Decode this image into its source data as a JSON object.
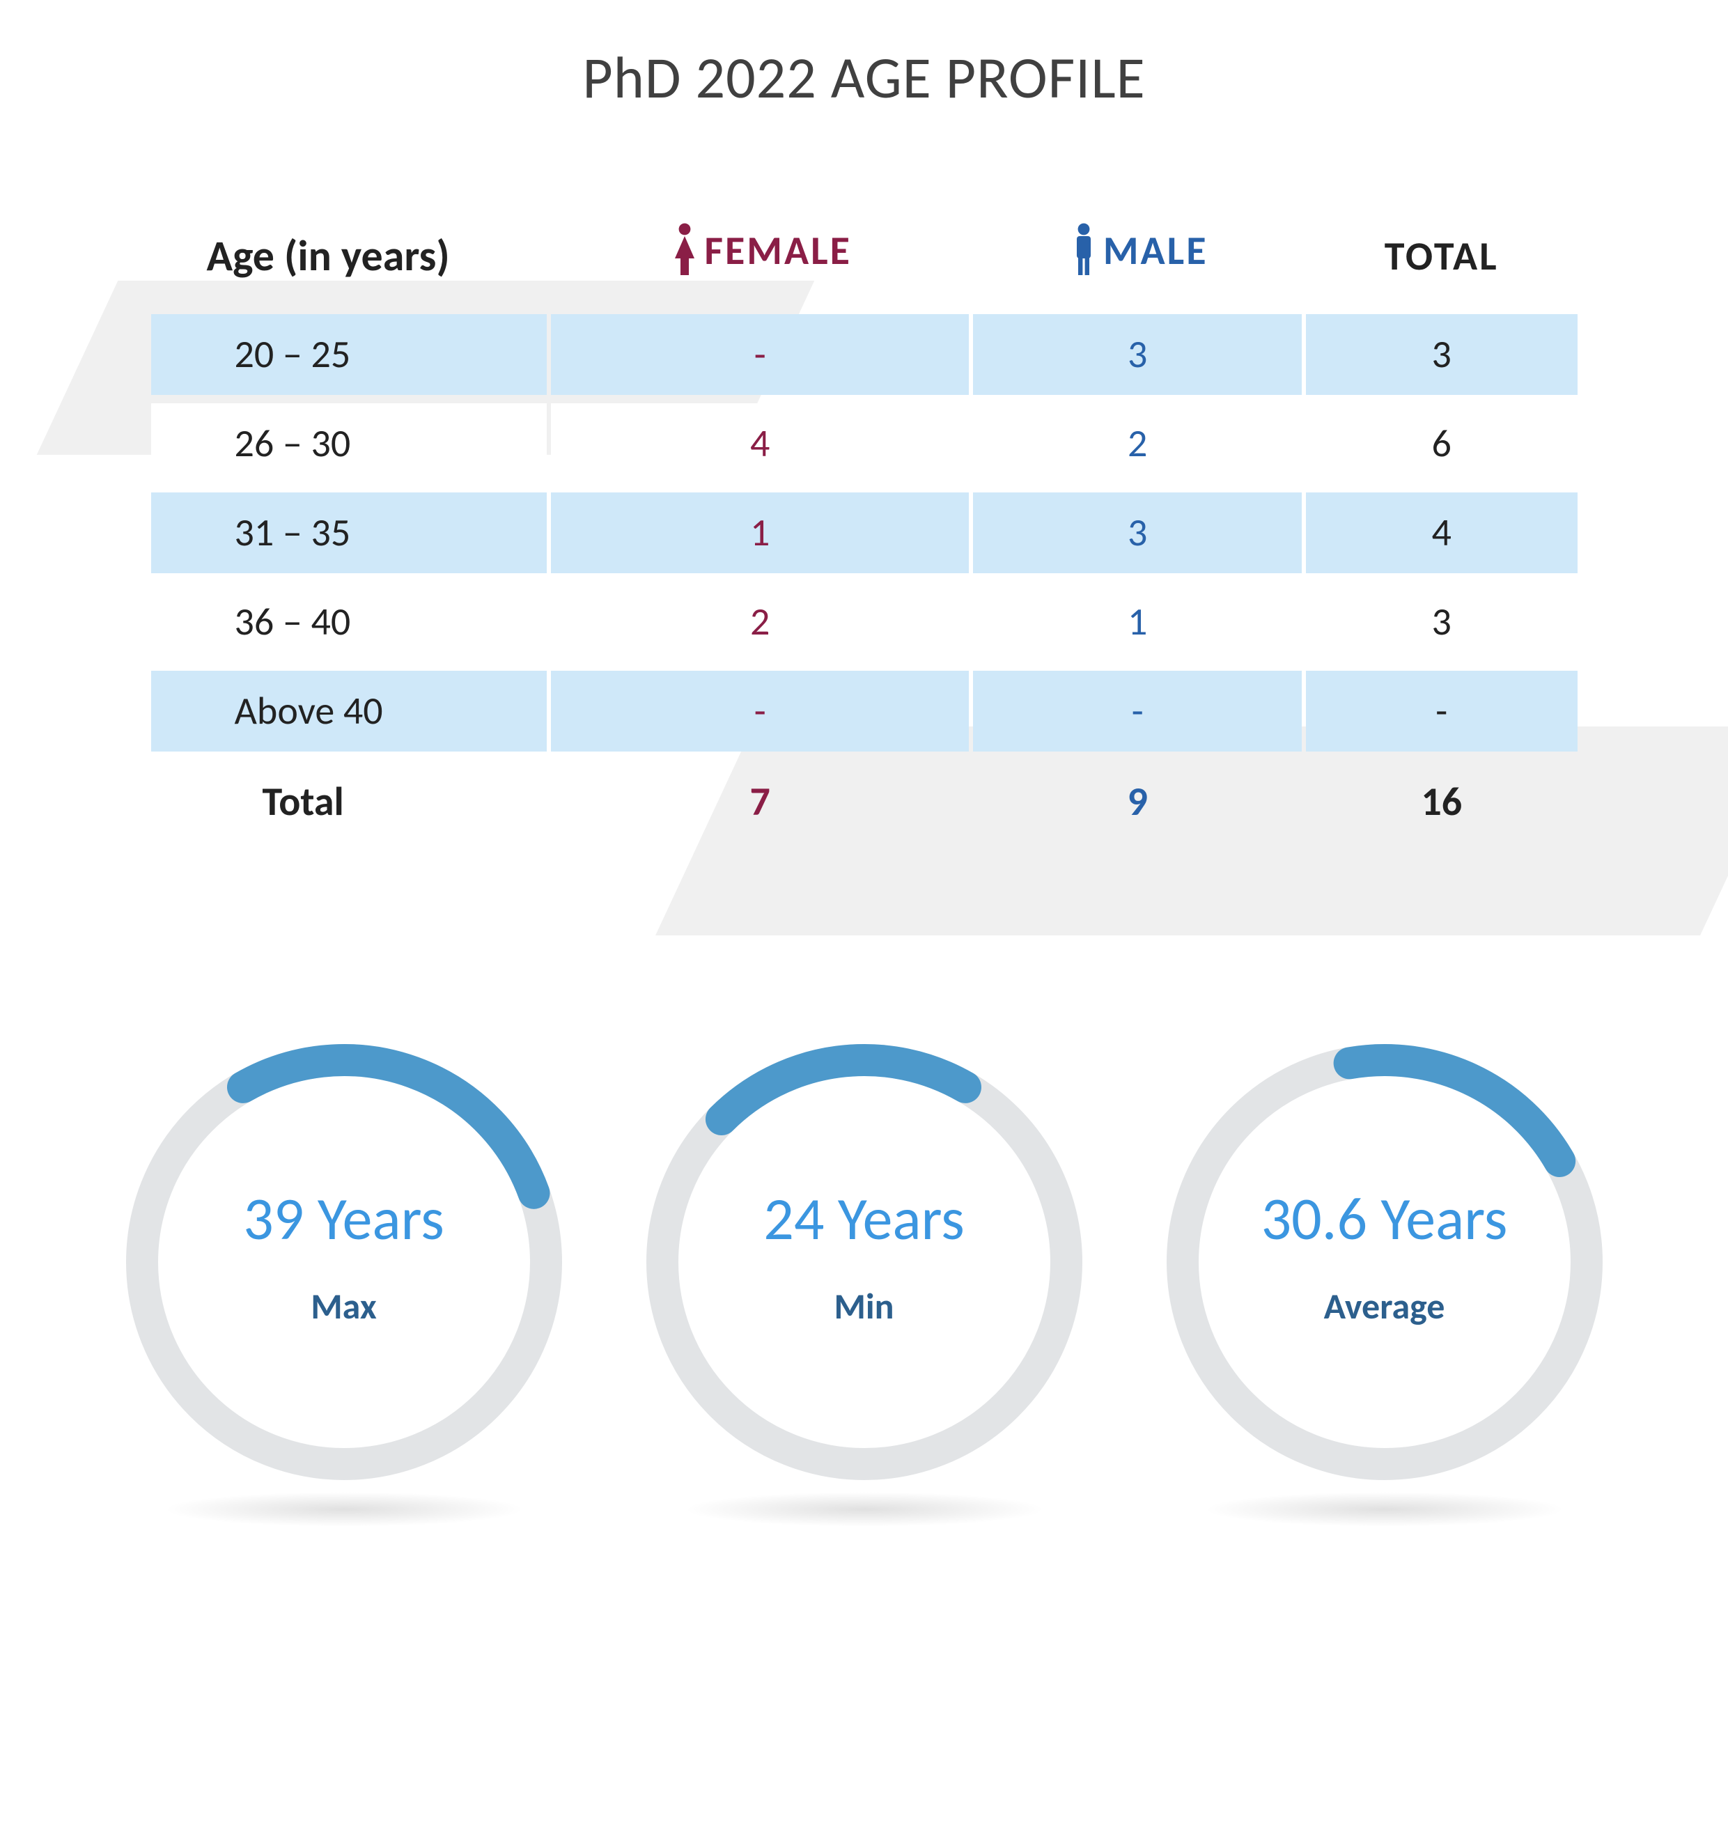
{
  "title": "PhD 2022 AGE PROFILE",
  "colors": {
    "female": "#8a1e46",
    "male": "#2861a9",
    "row_stripe": "#cfe8f9",
    "row_plain": "#ffffff",
    "bg_shape": "#f0f0f0",
    "title_color": "#404040",
    "gauge_ring_bg": "#e2e4e6",
    "gauge_ring_fg": "#4d99cb",
    "gauge_value_color": "#3b96e0",
    "gauge_label_color": "#2c5f8d"
  },
  "table": {
    "headers": {
      "age": "Age (in years)",
      "female": "FEMALE",
      "male": "MALE",
      "total": "TOTAL"
    },
    "rows": [
      {
        "age": "20 – 25",
        "female": "-",
        "male": "3",
        "total": "3"
      },
      {
        "age": "26 – 30",
        "female": "4",
        "male": "2",
        "total": "6"
      },
      {
        "age": "31 – 35",
        "female": "1",
        "male": "3",
        "total": "4"
      },
      {
        "age": "36 – 40",
        "female": "2",
        "male": "1",
        "total": "3"
      },
      {
        "age": "Above 40",
        "female": "-",
        "male": "-",
        "total": "-"
      }
    ],
    "totals": {
      "label": "Total",
      "female": "7",
      "male": "9",
      "total": "16"
    },
    "styling": {
      "header_fontsize": 62,
      "cell_fontsize": 56,
      "row_spacing": 12
    }
  },
  "gauges": {
    "ring": {
      "radius": 290,
      "stroke_width": 46,
      "bg_color": "#e2e4e6",
      "fg_color": "#4d99cb",
      "value_fontsize": 86,
      "label_fontsize": 52
    },
    "items": [
      {
        "value": "39 Years",
        "label": "Max",
        "arc_start_deg": -30,
        "arc_end_deg": 70
      },
      {
        "value": "24 Years",
        "label": "Min",
        "arc_start_deg": -45,
        "arc_end_deg": 30
      },
      {
        "value": "30.6 Years",
        "label": "Average",
        "arc_start_deg": -10,
        "arc_end_deg": 60
      }
    ]
  }
}
